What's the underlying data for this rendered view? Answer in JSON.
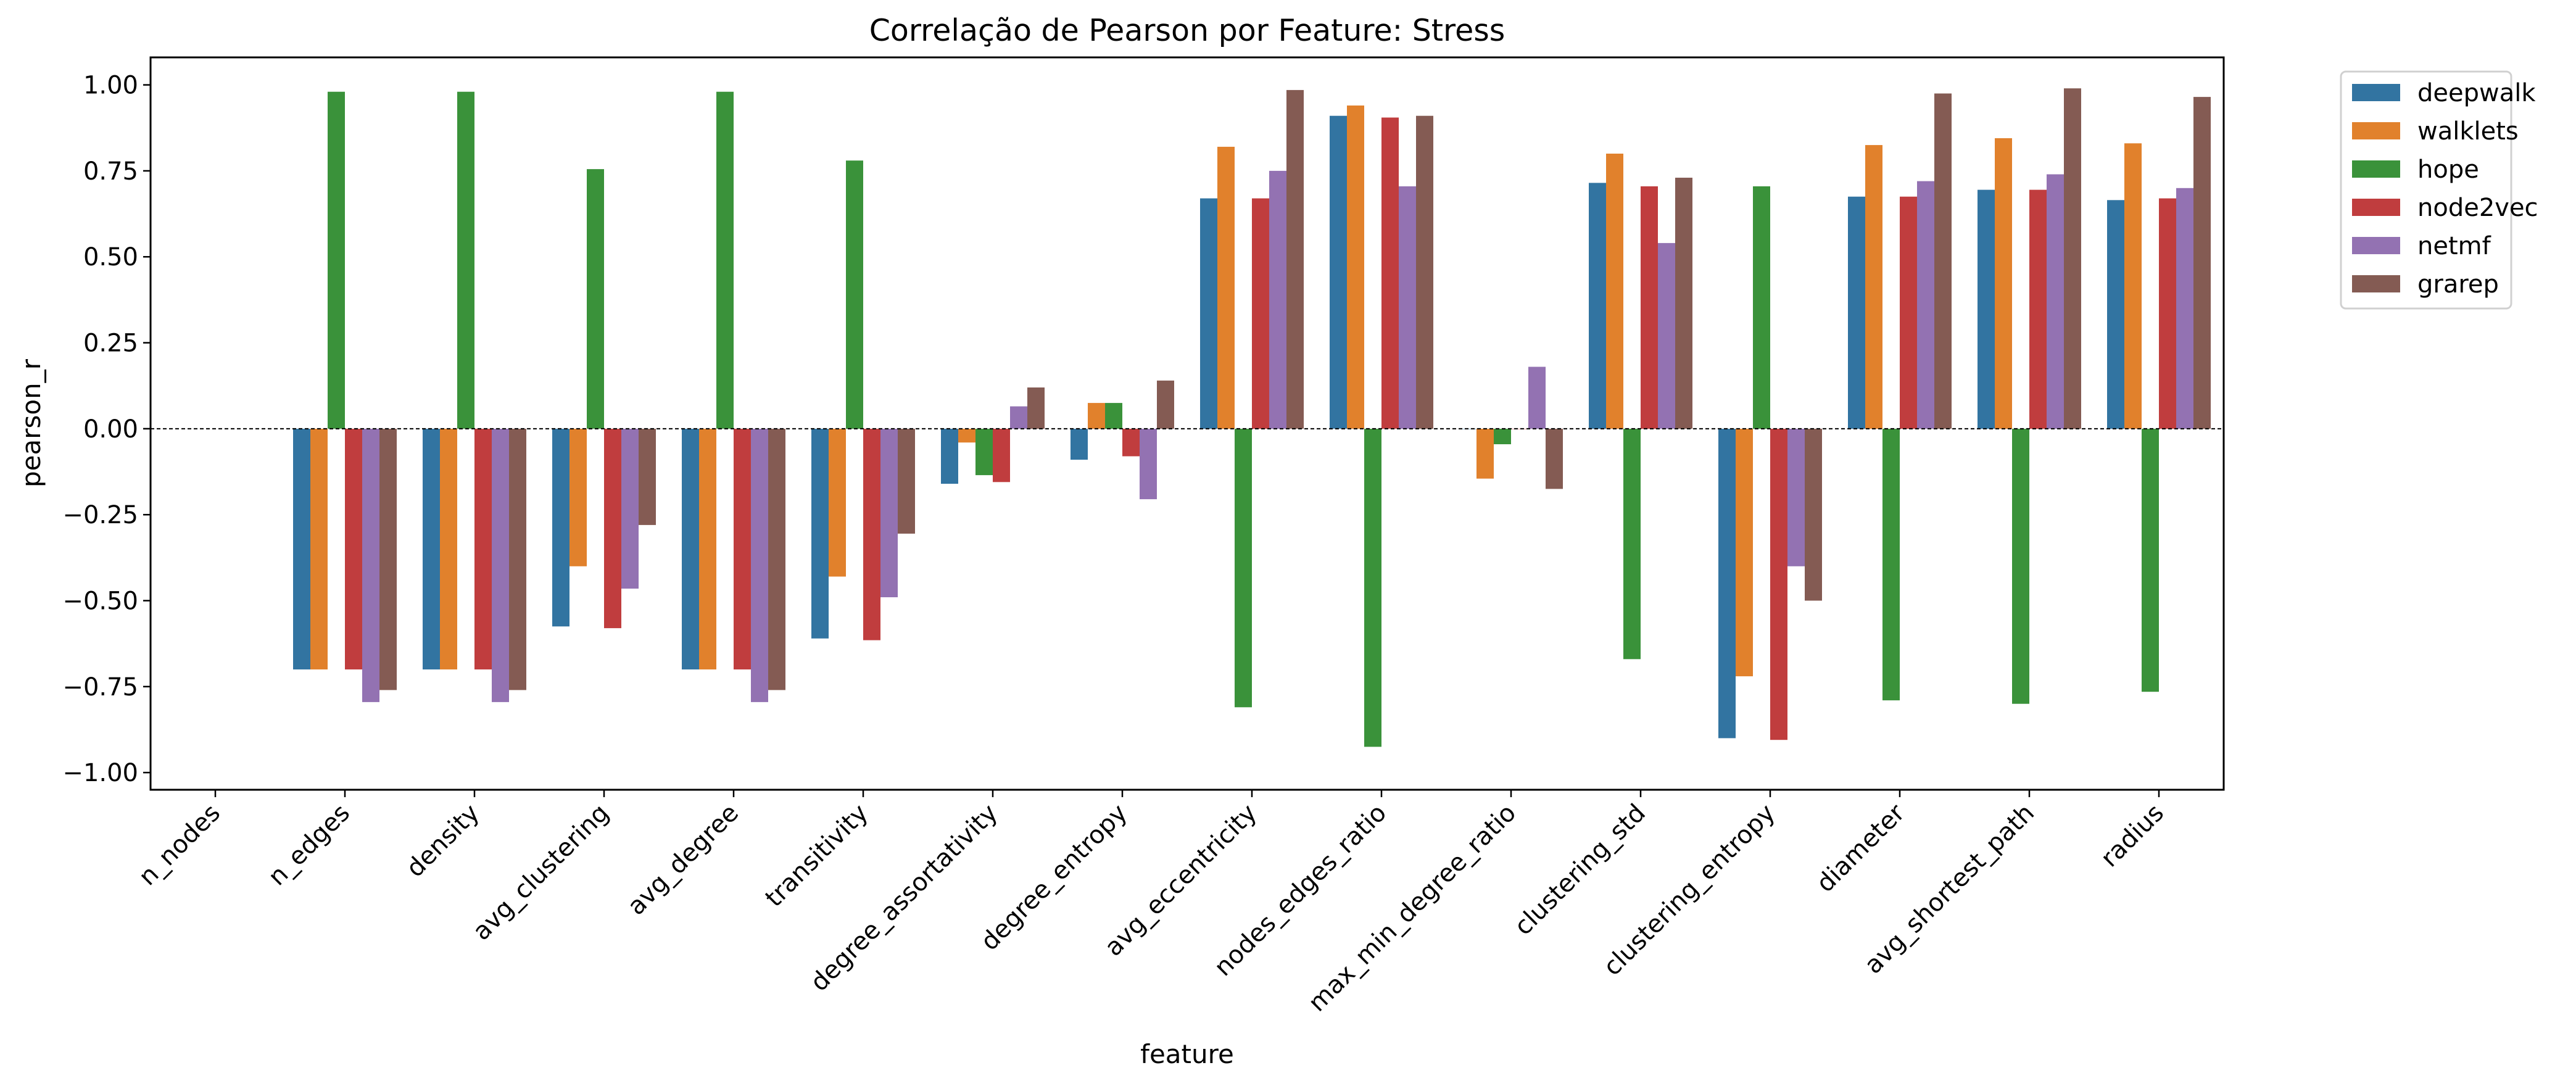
{
  "chart_data": {
    "type": "bar",
    "title": "Correlação de Pearson por Feature: Stress",
    "xlabel": "feature",
    "ylabel": "pearson_r",
    "ylim": [
      -1.05,
      1.08
    ],
    "yticks": [
      1.0,
      0.75,
      0.5,
      0.25,
      0.0,
      -0.25,
      -0.5,
      -0.75,
      -1.0
    ],
    "ytick_labels": [
      "1.00",
      "0.75",
      "0.50",
      "0.25",
      "0.00",
      "−0.25",
      "−0.50",
      "−0.75",
      "−1.00"
    ],
    "zero_line": "dashed",
    "grid": false,
    "legend_position": "outside-top-right",
    "categories": [
      "n_nodes",
      "n_edges",
      "density",
      "avg_clustering",
      "avg_degree",
      "transitivity",
      "degree_assortativity",
      "degree_entropy",
      "avg_eccentricity",
      "nodes_edges_ratio",
      "max_min_degree_ratio",
      "clustering_std",
      "clustering_entropy",
      "diameter",
      "avg_shortest_path",
      "radius"
    ],
    "series": [
      {
        "name": "deepwalk",
        "color": "#3274a1",
        "values": [
          null,
          -0.7,
          -0.7,
          -0.575,
          -0.7,
          -0.61,
          -0.16,
          -0.09,
          0.67,
          0.91,
          0.0,
          0.715,
          -0.9,
          0.675,
          0.695,
          0.665
        ]
      },
      {
        "name": "walklets",
        "color": "#e1812c",
        "values": [
          null,
          -0.7,
          -0.7,
          -0.4,
          -0.7,
          -0.43,
          -0.04,
          0.075,
          0.82,
          0.94,
          -0.145,
          0.8,
          -0.72,
          0.825,
          0.845,
          0.83
        ]
      },
      {
        "name": "hope",
        "color": "#3a923a",
        "values": [
          null,
          0.98,
          0.98,
          0.755,
          0.98,
          0.78,
          -0.135,
          0.075,
          -0.81,
          -0.925,
          -0.045,
          -0.67,
          0.705,
          -0.79,
          -0.8,
          -0.765
        ]
      },
      {
        "name": "node2vec",
        "color": "#c03d3e",
        "values": [
          null,
          -0.7,
          -0.7,
          -0.58,
          -0.7,
          -0.615,
          -0.155,
          -0.08,
          0.67,
          0.905,
          0.0,
          0.705,
          -0.905,
          0.675,
          0.695,
          0.67
        ]
      },
      {
        "name": "netmf",
        "color": "#9372b2",
        "values": [
          null,
          -0.795,
          -0.795,
          -0.465,
          -0.795,
          -0.49,
          0.065,
          -0.205,
          0.75,
          0.705,
          0.18,
          0.54,
          -0.4,
          0.72,
          0.74,
          0.7
        ]
      },
      {
        "name": "grarep",
        "color": "#845b53",
        "values": [
          null,
          -0.76,
          -0.76,
          -0.28,
          -0.76,
          -0.305,
          0.12,
          0.14,
          0.985,
          0.91,
          -0.175,
          0.73,
          -0.5,
          0.975,
          0.99,
          0.965
        ]
      }
    ]
  }
}
